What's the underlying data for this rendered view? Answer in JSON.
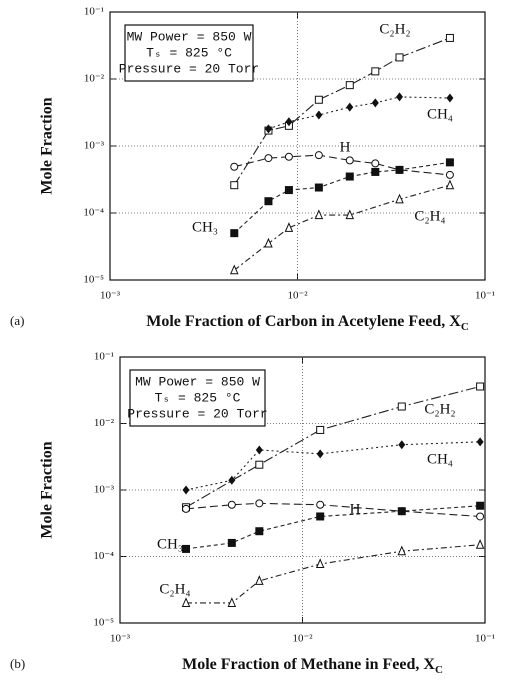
{
  "chart_data": [
    {
      "type": "line",
      "panel": "(a)",
      "xlabel": "Mole Fraction of Carbon in Acetylene Feed, X",
      "xlabel_subscript": "C",
      "ylabel": "Mole Fraction",
      "annotations": [
        "MW Power = 850 W",
        "Tₛ = 825 °C",
        "Pressure = 20 Torr"
      ],
      "xscale": "log",
      "yscale": "log",
      "grid": true,
      "xlim": [
        0.001,
        0.1
      ],
      "ylim": [
        1e-05,
        0.1
      ],
      "xticks": [
        {
          "value": 0.001,
          "label": "10⁻³"
        },
        {
          "value": 0.01,
          "label": "10⁻²"
        },
        {
          "value": 0.1,
          "label": "10⁻¹"
        }
      ],
      "yticks": [
        {
          "value": 1e-05,
          "label": "10⁻⁵"
        },
        {
          "value": 0.0001,
          "label": "10⁻⁴"
        },
        {
          "value": 0.001,
          "label": "10⁻³"
        },
        {
          "value": 0.01,
          "label": "10⁻²"
        },
        {
          "value": 0.1,
          "label": "10⁻¹"
        }
      ],
      "series": [
        {
          "name": "C₂H₂",
          "marker": "open-square",
          "dash": "10 3 2 3",
          "color": "#222",
          "x": [
            0.0046,
            0.007,
            0.009,
            0.013,
            0.019,
            0.026,
            0.035,
            0.065
          ],
          "values": [
            0.00026,
            0.0017,
            0.002,
            0.0049,
            0.0081,
            0.013,
            0.021,
            0.041
          ]
        },
        {
          "name": "CH₄",
          "marker": "filled-diamond",
          "dash": "2 3",
          "color": "#222",
          "x": [
            0.007,
            0.009,
            0.013,
            0.019,
            0.026,
            0.035,
            0.065
          ],
          "values": [
            0.0018,
            0.0023,
            0.0029,
            0.0038,
            0.0044,
            0.0054,
            0.0052
          ]
        },
        {
          "name": "H",
          "marker": "open-circle",
          "dash": "8 4",
          "color": "#222",
          "x": [
            0.0046,
            0.007,
            0.009,
            0.013,
            0.019,
            0.026,
            0.035,
            0.065
          ],
          "values": [
            0.00049,
            0.00066,
            0.00069,
            0.00073,
            0.00061,
            0.00055,
            0.00044,
            0.00037
          ]
        },
        {
          "name": "CH₃",
          "marker": "filled-square",
          "dash": "4 3",
          "color": "#222",
          "x": [
            0.0046,
            0.007,
            0.009,
            0.013,
            0.019,
            0.026,
            0.035,
            0.065
          ],
          "values": [
            5e-05,
            0.00015,
            0.00022,
            0.00024,
            0.00035,
            0.00041,
            0.00044,
            0.00057
          ]
        },
        {
          "name": "C₂H₄",
          "marker": "open-triangle",
          "dash": "6 3 2 3",
          "color": "#222",
          "x": [
            0.0046,
            0.007,
            0.009,
            0.013,
            0.019,
            0.035,
            0.065
          ],
          "values": [
            1.4e-05,
            3.5e-05,
            6e-05,
            9.3e-05,
            9.3e-05,
            0.00016,
            0.00026
          ]
        }
      ]
    },
    {
      "type": "line",
      "panel": "(b)",
      "xlabel": "Mole Fraction of Methane in Feed, X",
      "xlabel_subscript": "C",
      "ylabel": "Mole Fraction",
      "annotations": [
        "MW Power = 850 W",
        "Tₛ = 825 °C",
        "Pressure = 20 Torr"
      ],
      "xscale": "log",
      "yscale": "log",
      "grid": true,
      "xlim": [
        0.001,
        0.1
      ],
      "ylim": [
        1e-05,
        0.1
      ],
      "xticks": [
        {
          "value": 0.001,
          "label": "10⁻³"
        },
        {
          "value": 0.01,
          "label": "10⁻²"
        },
        {
          "value": 0.1,
          "label": "10⁻¹"
        }
      ],
      "yticks": [
        {
          "value": 1e-05,
          "label": "10⁻⁵"
        },
        {
          "value": 0.0001,
          "label": "10⁻⁴"
        },
        {
          "value": 0.001,
          "label": "10⁻³"
        },
        {
          "value": 0.01,
          "label": "10⁻²"
        },
        {
          "value": 0.1,
          "label": "10⁻¹"
        }
      ],
      "series": [
        {
          "name": "C₂H₂",
          "marker": "open-square",
          "dash": "10 3 2 3",
          "color": "#222",
          "x": [
            0.0023,
            0.0058,
            0.0125,
            0.035,
            0.094
          ],
          "values": [
            0.00055,
            0.0024,
            0.008,
            0.018,
            0.036
          ]
        },
        {
          "name": "CH₄",
          "marker": "filled-diamond",
          "dash": "2 3",
          "color": "#222",
          "x": [
            0.0023,
            0.0041,
            0.0058,
            0.0125,
            0.035,
            0.094
          ],
          "values": [
            0.001,
            0.0014,
            0.004,
            0.0035,
            0.0048,
            0.0053
          ]
        },
        {
          "name": "H",
          "marker": "open-circle",
          "dash": "8 4",
          "color": "#222",
          "x": [
            0.0023,
            0.0041,
            0.0058,
            0.0125,
            0.035,
            0.094
          ],
          "values": [
            0.00052,
            0.0006,
            0.00063,
            0.0006,
            0.00048,
            0.0004
          ]
        },
        {
          "name": "CH₃",
          "marker": "filled-square",
          "dash": "4 3",
          "color": "#222",
          "x": [
            0.0023,
            0.0041,
            0.0058,
            0.0125,
            0.035,
            0.094
          ],
          "values": [
            0.00013,
            0.00016,
            0.00024,
            0.0004,
            0.00048,
            0.00058
          ]
        },
        {
          "name": "C₂H₄",
          "marker": "open-triangle",
          "dash": "6 3 2 3",
          "color": "#222",
          "x": [
            0.0023,
            0.0041,
            0.0058,
            0.0125,
            0.035,
            0.094
          ],
          "values": [
            2e-05,
            2e-05,
            4.3e-05,
            7.7e-05,
            0.00012,
            0.00015
          ]
        }
      ]
    }
  ]
}
